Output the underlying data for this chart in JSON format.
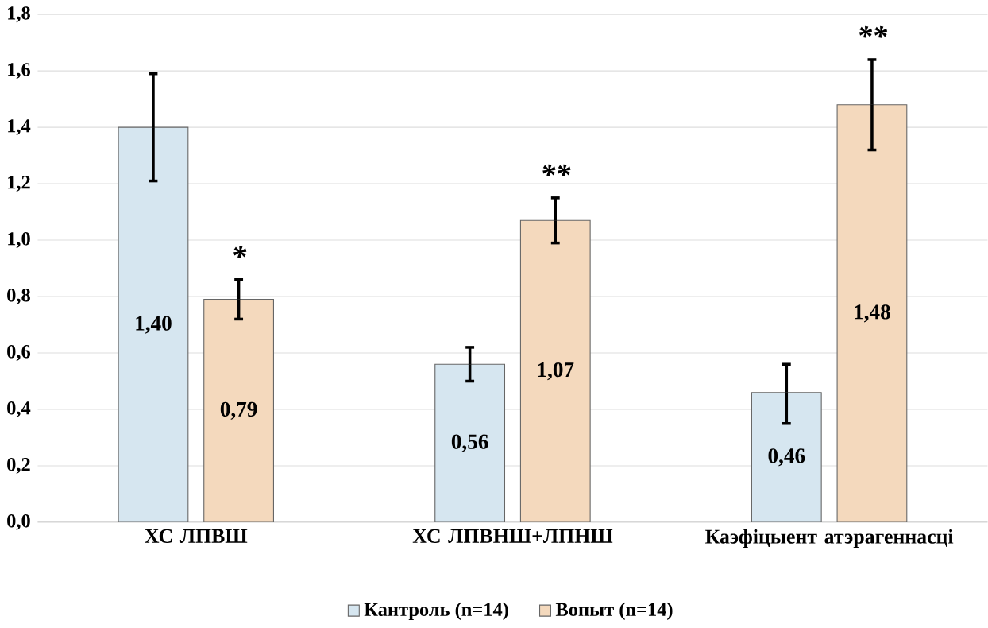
{
  "chart_data": {
    "type": "bar",
    "categories": [
      "ХС ЛПВШ",
      "ХС ЛПВНШ+ЛПНШ",
      "Каэфіцыент атэрагеннасці"
    ],
    "series": [
      {
        "name": "Кантроль (n=14)",
        "color": "#d6e6f0",
        "values": [
          1.4,
          0.56,
          0.46
        ],
        "value_labels": [
          "1,40",
          "0,56",
          "0,46"
        ],
        "errors": [
          [
            1.21,
            1.59
          ],
          [
            0.5,
            0.62
          ],
          [
            0.35,
            0.56
          ]
        ]
      },
      {
        "name": "Вопыт (n=14)",
        "color": "#f4d9bd",
        "values": [
          0.79,
          1.07,
          1.48
        ],
        "value_labels": [
          "0,79",
          "1,07",
          "1,48"
        ],
        "errors": [
          [
            0.72,
            0.86
          ],
          [
            0.99,
            1.15
          ],
          [
            1.32,
            1.64
          ]
        ]
      }
    ],
    "annotations": [
      "*",
      "**",
      "**"
    ],
    "ylim": [
      0,
      1.8
    ],
    "yticks": [
      {
        "value": 0,
        "label": "0,0"
      },
      {
        "value": 0.2,
        "label": "0,2"
      },
      {
        "value": 0.4,
        "label": "0,4"
      },
      {
        "value": 0.6,
        "label": "0,6"
      },
      {
        "value": 0.8,
        "label": "0,8"
      },
      {
        "value": 1.0,
        "label": "1,0"
      },
      {
        "value": 1.2,
        "label": "1,2"
      },
      {
        "value": 1.4,
        "label": "1,4"
      },
      {
        "value": 1.6,
        "label": "1,6"
      },
      {
        "value": 1.8,
        "label": "1,8"
      }
    ],
    "grid": "y",
    "legend": "bottom"
  }
}
